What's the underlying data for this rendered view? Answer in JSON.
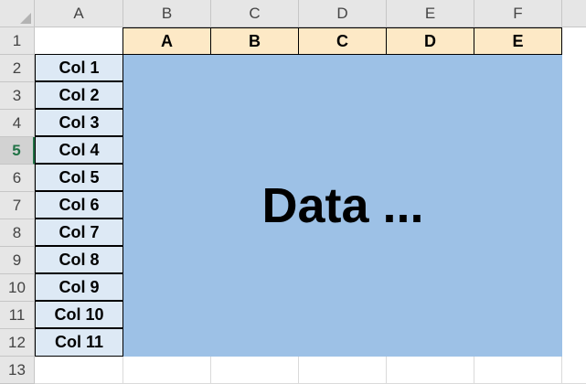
{
  "columns": [
    "A",
    "B",
    "C",
    "D",
    "E",
    "F"
  ],
  "rows": [
    "1",
    "2",
    "3",
    "4",
    "5",
    "6",
    "7",
    "8",
    "9",
    "10",
    "11",
    "12",
    "13"
  ],
  "active_row": "5",
  "header_cells": [
    "A",
    "B",
    "C",
    "D",
    "E"
  ],
  "label_cells": [
    "Col 1",
    "Col 2",
    "Col 3",
    "Col 4",
    "Col 5",
    "Col 6",
    "Col 7",
    "Col 8",
    "Col 9",
    "Col 10",
    "Col 11"
  ],
  "data_block": {
    "text": "Data ..."
  },
  "colors": {
    "header_fill": "#fde9c6",
    "label_fill": "#dde9f5",
    "data_fill": "#9dc1e6",
    "active_row_accent": "#217346"
  }
}
